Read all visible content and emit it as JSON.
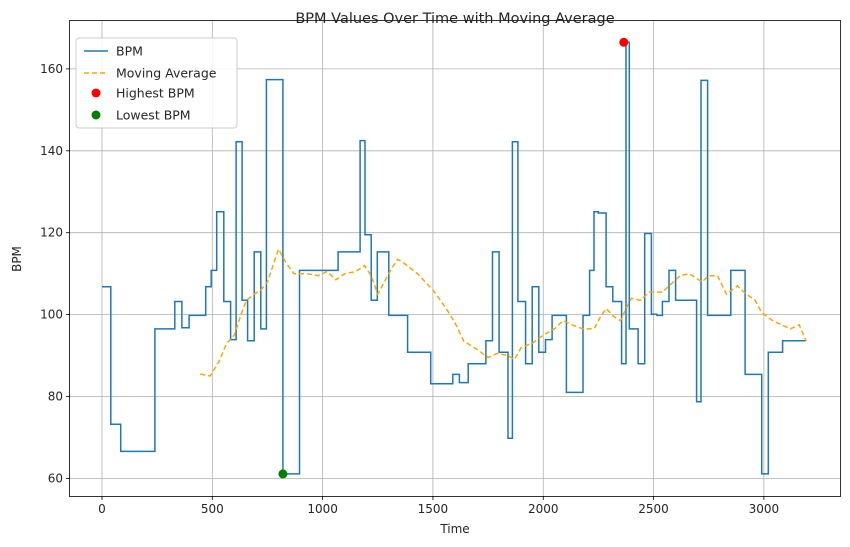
{
  "chart_data": {
    "type": "line",
    "title": "BPM Values Over Time with Moving Average",
    "xlabel": "Time",
    "ylabel": "BPM",
    "xlim": [
      -145,
      3345
    ],
    "ylim": [
      55.7,
      171.7
    ],
    "x_ticks": [
      0,
      500,
      1000,
      1500,
      2000,
      2500,
      3000
    ],
    "y_ticks": [
      60,
      80,
      100,
      120,
      140,
      160
    ],
    "grid": true,
    "legend_position": "upper-left",
    "series": [
      {
        "name": "BPM",
        "style": "step",
        "color": "#1f77b4",
        "points": [
          [
            0,
            106.8
          ],
          [
            40,
            106.8
          ],
          [
            40,
            73.2
          ],
          [
            85,
            73.2
          ],
          [
            85,
            66.6
          ],
          [
            240,
            66.6
          ],
          [
            240,
            96.5
          ],
          [
            330,
            96.5
          ],
          [
            330,
            103.2
          ],
          [
            362,
            103.2
          ],
          [
            362,
            96.8
          ],
          [
            395,
            96.8
          ],
          [
            395,
            99.8
          ],
          [
            470,
            99.8
          ],
          [
            470,
            106.8
          ],
          [
            495,
            106.8
          ],
          [
            495,
            110.8
          ],
          [
            520,
            110.8
          ],
          [
            520,
            125.1
          ],
          [
            552,
            125.1
          ],
          [
            552,
            103.2
          ],
          [
            583,
            103.2
          ],
          [
            583,
            93.9
          ],
          [
            608,
            93.9
          ],
          [
            608,
            142.2
          ],
          [
            635,
            142.2
          ],
          [
            635,
            103.5
          ],
          [
            660,
            103.5
          ],
          [
            660,
            93.6
          ],
          [
            690,
            93.6
          ],
          [
            690,
            115.3
          ],
          [
            720,
            115.3
          ],
          [
            720,
            96.5
          ],
          [
            745,
            96.5
          ],
          [
            745,
            157.4
          ],
          [
            820,
            157.4
          ],
          [
            820,
            61.1
          ],
          [
            895,
            61.1
          ],
          [
            895,
            110.8
          ],
          [
            1070,
            110.8
          ],
          [
            1070,
            115.3
          ],
          [
            1170,
            115.3
          ],
          [
            1170,
            142.5
          ],
          [
            1192,
            142.5
          ],
          [
            1192,
            119.5
          ],
          [
            1220,
            119.5
          ],
          [
            1220,
            103.5
          ],
          [
            1248,
            103.5
          ],
          [
            1248,
            115.3
          ],
          [
            1300,
            115.3
          ],
          [
            1300,
            99.8
          ],
          [
            1385,
            99.8
          ],
          [
            1385,
            90.8
          ],
          [
            1490,
            90.8
          ],
          [
            1490,
            83.1
          ],
          [
            1590,
            83.1
          ],
          [
            1590,
            85.4
          ],
          [
            1620,
            85.4
          ],
          [
            1620,
            83.4
          ],
          [
            1660,
            83.4
          ],
          [
            1660,
            88.0
          ],
          [
            1740,
            88.0
          ],
          [
            1740,
            93.6
          ],
          [
            1770,
            93.6
          ],
          [
            1770,
            115.3
          ],
          [
            1800,
            115.3
          ],
          [
            1800,
            90.8
          ],
          [
            1840,
            90.8
          ],
          [
            1840,
            69.8
          ],
          [
            1860,
            69.8
          ],
          [
            1860,
            142.2
          ],
          [
            1885,
            142.2
          ],
          [
            1885,
            103.2
          ],
          [
            1920,
            103.2
          ],
          [
            1920,
            88.0
          ],
          [
            1950,
            88.0
          ],
          [
            1950,
            106.8
          ],
          [
            1980,
            106.8
          ],
          [
            1980,
            90.8
          ],
          [
            2010,
            90.8
          ],
          [
            2010,
            93.9
          ],
          [
            2040,
            93.9
          ],
          [
            2040,
            99.8
          ],
          [
            2105,
            99.8
          ],
          [
            2105,
            81.0
          ],
          [
            2180,
            81.0
          ],
          [
            2180,
            99.8
          ],
          [
            2210,
            99.8
          ],
          [
            2210,
            110.8
          ],
          [
            2230,
            110.8
          ],
          [
            2230,
            125.1
          ],
          [
            2250,
            125.1
          ],
          [
            2250,
            124.8
          ],
          [
            2285,
            124.8
          ],
          [
            2285,
            106.8
          ],
          [
            2315,
            106.8
          ],
          [
            2315,
            103.2
          ],
          [
            2355,
            103.2
          ],
          [
            2355,
            88.0
          ],
          [
            2375,
            88.0
          ],
          [
            2375,
            166.5
          ],
          [
            2390,
            166.5
          ],
          [
            2390,
            96.5
          ],
          [
            2430,
            96.5
          ],
          [
            2430,
            88.0
          ],
          [
            2460,
            88.0
          ],
          [
            2460,
            119.8
          ],
          [
            2490,
            119.8
          ],
          [
            2490,
            100.1
          ],
          [
            2515,
            100.1
          ],
          [
            2515,
            99.8
          ],
          [
            2540,
            99.8
          ],
          [
            2540,
            103.2
          ],
          [
            2570,
            103.2
          ],
          [
            2570,
            110.8
          ],
          [
            2600,
            110.8
          ],
          [
            2600,
            103.5
          ],
          [
            2695,
            103.5
          ],
          [
            2695,
            78.7
          ],
          [
            2715,
            78.7
          ],
          [
            2715,
            157.2
          ],
          [
            2745,
            157.2
          ],
          [
            2745,
            99.8
          ],
          [
            2850,
            99.8
          ],
          [
            2850,
            110.8
          ],
          [
            2915,
            110.8
          ],
          [
            2915,
            85.4
          ],
          [
            2990,
            85.4
          ],
          [
            2990,
            61.1
          ],
          [
            3020,
            61.1
          ],
          [
            3020,
            90.8
          ],
          [
            3085,
            90.8
          ],
          [
            3085,
            93.6
          ],
          [
            3120,
            93.6
          ],
          [
            3120,
            93.6
          ],
          [
            3192,
            93.6
          ]
        ]
      },
      {
        "name": "Moving Average",
        "style": "dashed",
        "color": "#ffa500",
        "points": [
          [
            445,
            85.5
          ],
          [
            490,
            85.0
          ],
          [
            530,
            88.5
          ],
          [
            565,
            93.0
          ],
          [
            600,
            95.0
          ],
          [
            630,
            100.0
          ],
          [
            655,
            103.5
          ],
          [
            690,
            105.0
          ],
          [
            720,
            106.0
          ],
          [
            750,
            108.0
          ],
          [
            775,
            112.0
          ],
          [
            800,
            116.0
          ],
          [
            830,
            113.0
          ],
          [
            870,
            110.0
          ],
          [
            930,
            110.0
          ],
          [
            980,
            109.5
          ],
          [
            1020,
            110.5
          ],
          [
            1060,
            108.5
          ],
          [
            1100,
            110.0
          ],
          [
            1150,
            110.5
          ],
          [
            1190,
            112.0
          ],
          [
            1220,
            109.5
          ],
          [
            1250,
            105.0
          ],
          [
            1280,
            108.0
          ],
          [
            1310,
            111.0
          ],
          [
            1340,
            113.5
          ],
          [
            1370,
            112.5
          ],
          [
            1430,
            110.0
          ],
          [
            1500,
            106.0
          ],
          [
            1560,
            101.5
          ],
          [
            1600,
            98.0
          ],
          [
            1640,
            93.5
          ],
          [
            1700,
            91.5
          ],
          [
            1750,
            89.5
          ],
          [
            1790,
            90.5
          ],
          [
            1840,
            90.0
          ],
          [
            1870,
            89.0
          ],
          [
            1900,
            92.0
          ],
          [
            1950,
            93.0
          ],
          [
            2000,
            95.0
          ],
          [
            2050,
            96.5
          ],
          [
            2090,
            98.5
          ],
          [
            2130,
            97.5
          ],
          [
            2180,
            96.5
          ],
          [
            2230,
            96.5
          ],
          [
            2260,
            99.5
          ],
          [
            2285,
            101.5
          ],
          [
            2320,
            99.5
          ],
          [
            2350,
            98.5
          ],
          [
            2380,
            102.0
          ],
          [
            2400,
            104.0
          ],
          [
            2440,
            103.5
          ],
          [
            2480,
            105.5
          ],
          [
            2540,
            105.5
          ],
          [
            2580,
            107.5
          ],
          [
            2620,
            109.5
          ],
          [
            2660,
            110.0
          ],
          [
            2690,
            109.0
          ],
          [
            2720,
            108.0
          ],
          [
            2750,
            109.5
          ],
          [
            2790,
            109.5
          ],
          [
            2830,
            105.0
          ],
          [
            2880,
            107.0
          ],
          [
            2920,
            105.0
          ],
          [
            2960,
            103.5
          ],
          [
            2990,
            100.5
          ],
          [
            3040,
            98.5
          ],
          [
            3080,
            97.5
          ],
          [
            3120,
            96.5
          ],
          [
            3160,
            97.5
          ],
          [
            3192,
            93.5
          ]
        ]
      }
    ],
    "highlights": [
      {
        "name": "Highest BPM",
        "x": 2365,
        "y": 166.5,
        "color": "#ff0000"
      },
      {
        "name": "Lowest BPM",
        "x": 820,
        "y": 61.1,
        "color": "#008000"
      }
    ]
  }
}
